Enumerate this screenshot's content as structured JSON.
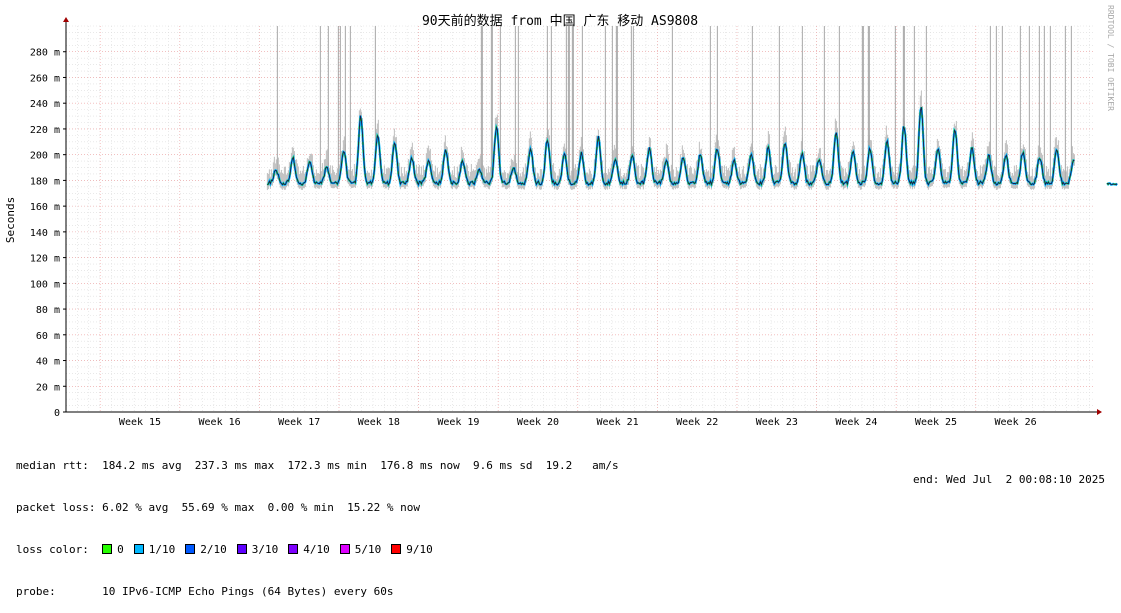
{
  "chart_data": {
    "type": "line",
    "title": "90天前的数据 from 中国 广东 移动 AS9808",
    "ylabel": "Seconds",
    "watermark": "RRDTOOL / TOBI OETIKER",
    "ylim": [
      0,
      300
    ],
    "y_unit_suffix": "m",
    "y_ticks": [
      0,
      20,
      40,
      60,
      80,
      100,
      120,
      140,
      160,
      180,
      200,
      220,
      240,
      260,
      280
    ],
    "x_ticks": [
      "Week 15",
      "Week 16",
      "Week 17",
      "Week 18",
      "Week 19",
      "Week 20",
      "Week 21",
      "Week 22",
      "Week 23",
      "Week 24",
      "Week 25",
      "Week 26"
    ],
    "data_start_week": 16.6,
    "gap_weeks": [
      26.75,
      27.15
    ],
    "median_baseline_ms": 178,
    "median_peak_ms": [
      188,
      197,
      195,
      190,
      203,
      230,
      214,
      210,
      198,
      196,
      204,
      195,
      188,
      222,
      190,
      205,
      212,
      200,
      201,
      213,
      197,
      200,
      205,
      195,
      198,
      200,
      205,
      195,
      201,
      205,
      210,
      200,
      197,
      218,
      202,
      205,
      210,
      222,
      237,
      204,
      220,
      205,
      199,
      200,
      202,
      198,
      204,
      196,
      195
    ],
    "series": [
      {
        "name": "0",
        "color": "#26ff00"
      },
      {
        "name": "1/10",
        "color": "#00b8ff"
      },
      {
        "name": "2/10",
        "color": "#0059ff"
      },
      {
        "name": "3/10",
        "color": "#5e00ff"
      },
      {
        "name": "4/10",
        "color": "#7e00ff"
      },
      {
        "name": "5/10",
        "color": "#dd00ff"
      },
      {
        "name": "9/10",
        "color": "#ff0000"
      }
    ],
    "grid": true,
    "legend_position": "bottom"
  },
  "stats": {
    "median_rtt": "median rtt:  184.2 ms avg  237.3 ms max  172.3 ms min  176.8 ms now  9.6 ms sd  19.2   am/s",
    "packet_loss": "packet loss: 6.02 % avg  55.69 % max  0.00 % min  15.22 % now",
    "loss_color_label": "loss color:",
    "probe": "probe:       10 IPv6-ICMP Echo Pings (64 Bytes) every 60s",
    "end": "end: Wed Jul  2 00:08:10 2025"
  }
}
